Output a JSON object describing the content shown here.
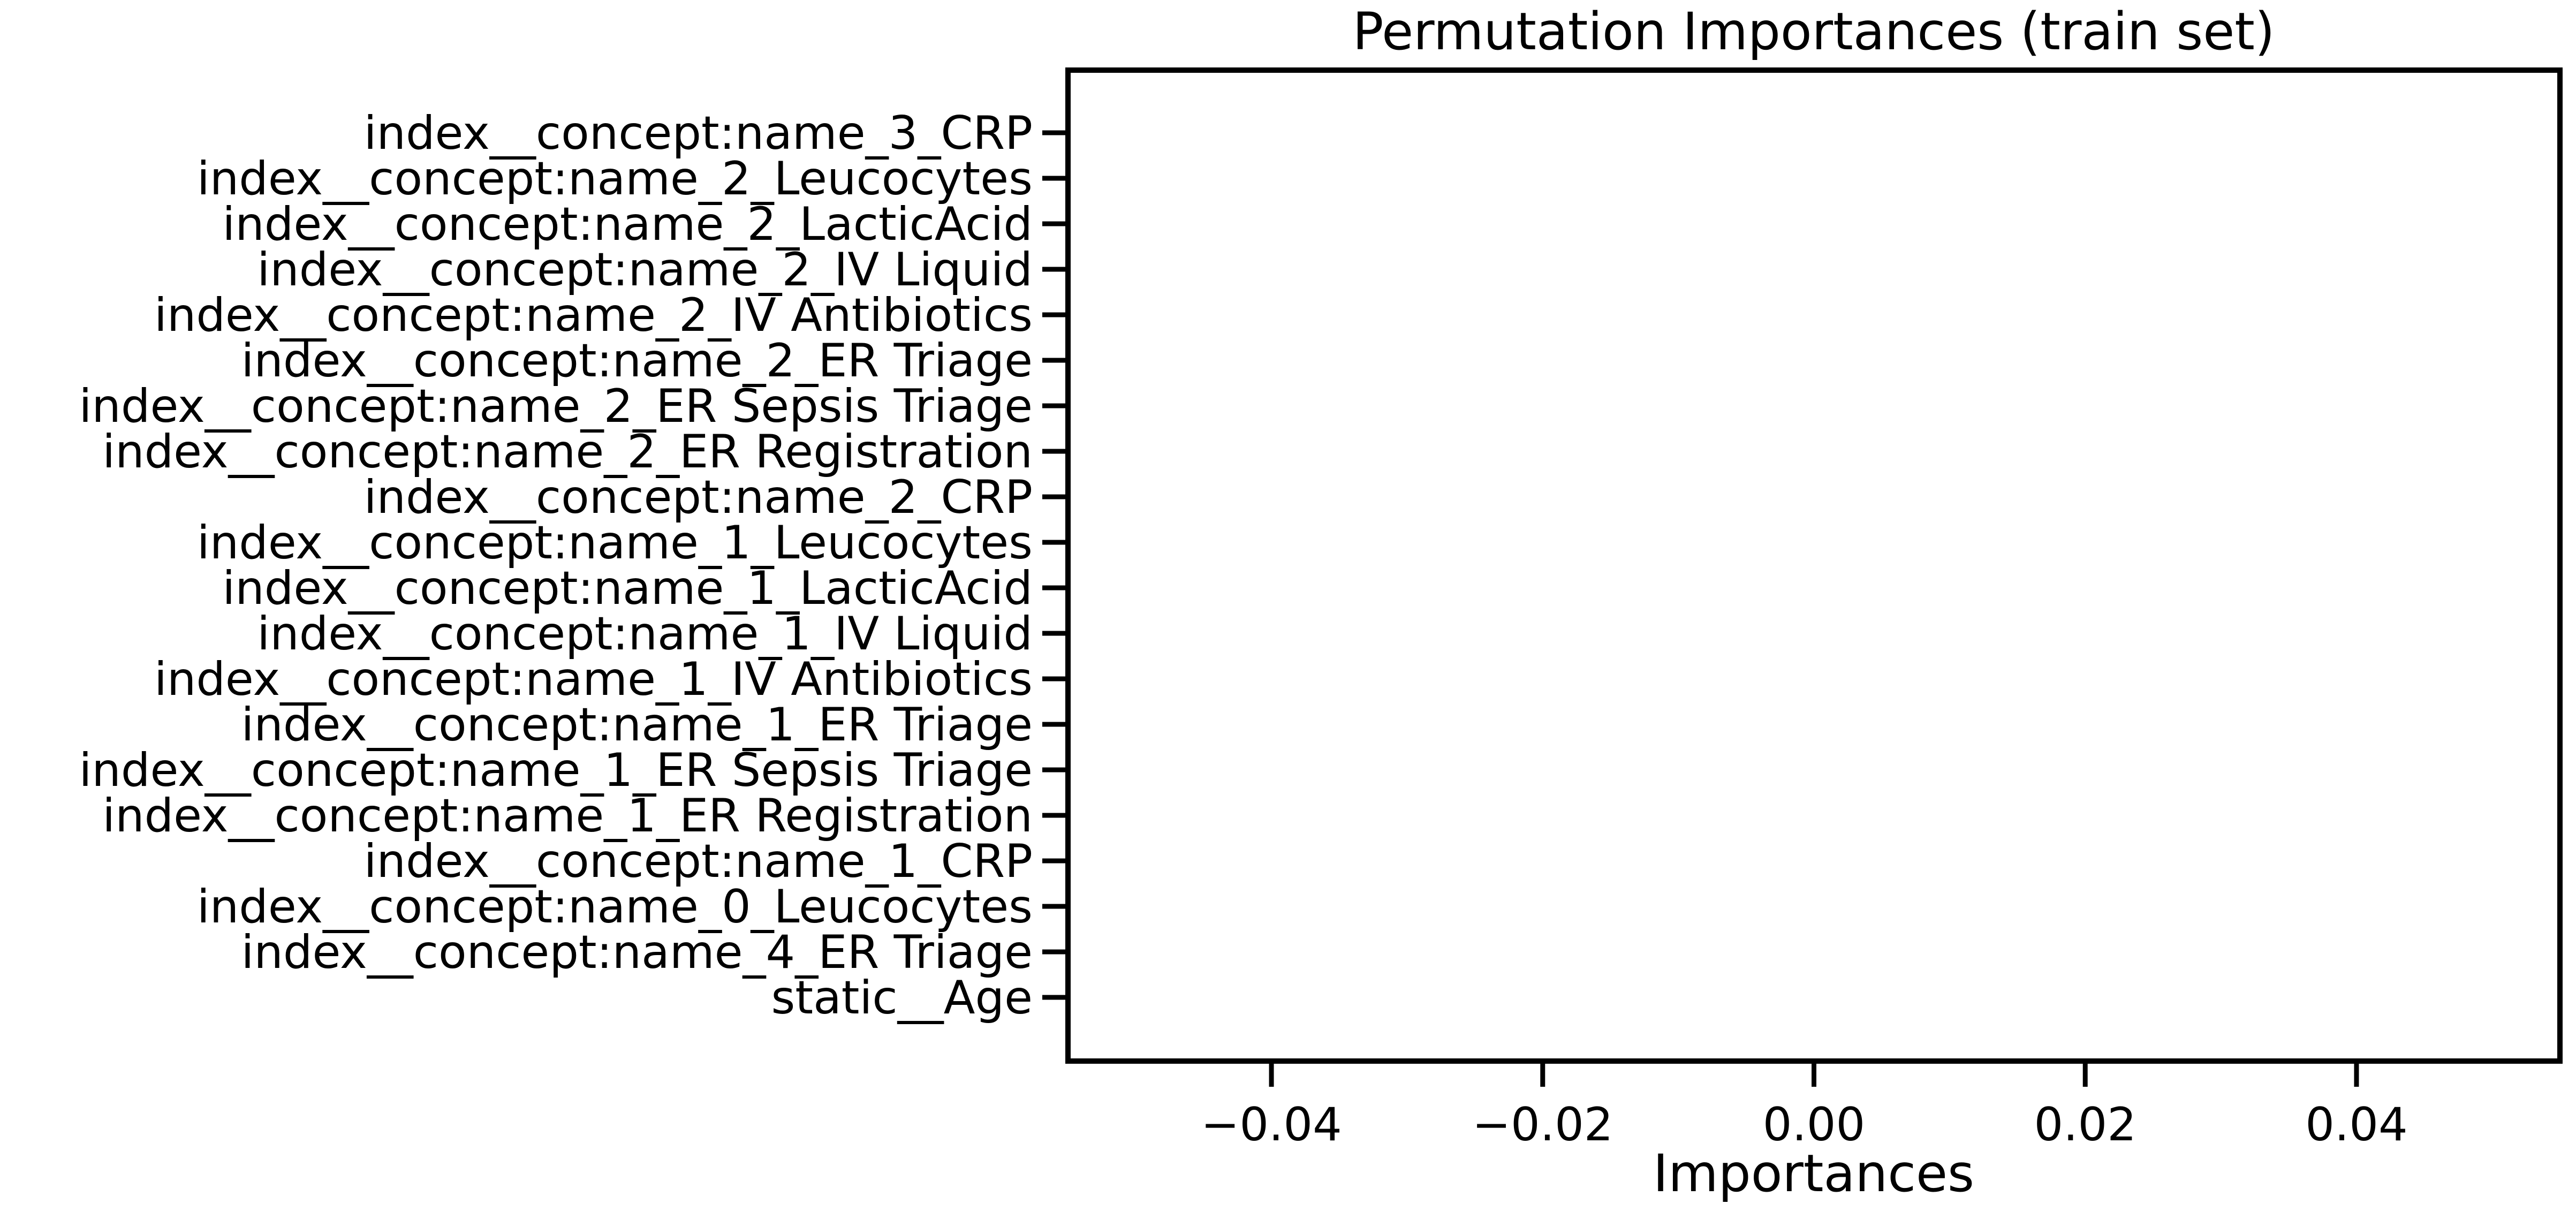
{
  "chart_data": {
    "type": "bar",
    "orientation": "horizontal",
    "title": "Permutation Importances (train set)",
    "xlabel": "Importances",
    "ylabel": "",
    "xlim": [
      -0.055,
      0.055
    ],
    "x_ticks": [
      -0.04,
      -0.02,
      0.0,
      0.02,
      0.04
    ],
    "x_tick_labels": [
      "−0.04",
      "−0.02",
      "0.00",
      "0.02",
      "0.04"
    ],
    "categories": [
      "index__concept:name_3_CRP",
      "index__concept:name_2_Leucocytes",
      "index__concept:name_2_LacticAcid",
      "index__concept:name_2_IV Liquid",
      "index__concept:name_2_IV Antibiotics",
      "index__concept:name_2_ER Triage",
      "index__concept:name_2_ER Sepsis Triage",
      "index__concept:name_2_ER Registration",
      "index__concept:name_2_CRP",
      "index__concept:name_1_Leucocytes",
      "index__concept:name_1_LacticAcid",
      "index__concept:name_1_IV Liquid",
      "index__concept:name_1_IV Antibiotics",
      "index__concept:name_1_ER Triage",
      "index__concept:name_1_ER Sepsis Triage",
      "index__concept:name_1_ER Registration",
      "index__concept:name_1_CRP",
      "index__concept:name_0_Leucocytes",
      "index__concept:name_4_ER Triage",
      "static__Age"
    ],
    "values": [
      0,
      0,
      0,
      0,
      0,
      0,
      0,
      0,
      0,
      0,
      0,
      0,
      0,
      0,
      0,
      0,
      0,
      0,
      0,
      0
    ],
    "grid": false,
    "legend": "none",
    "colors": {
      "axis": "#000000",
      "text": "#000000",
      "background": "#ffffff"
    }
  }
}
